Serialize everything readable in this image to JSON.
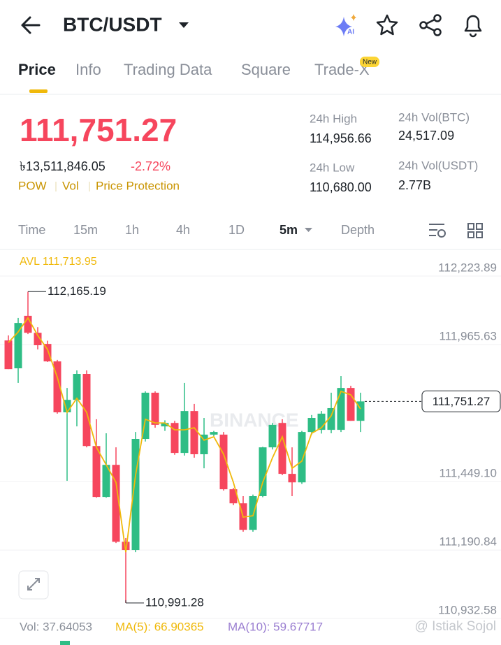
{
  "header": {
    "pair": "BTC/USDT",
    "ai": "AI"
  },
  "tabs": [
    "Price",
    "Info",
    "Trading Data",
    "Square",
    "Trade-X"
  ],
  "tab_badge": "New",
  "price": {
    "last": "111,751.27",
    "fiat": "৳13,511,846.05",
    "change": "-2.72%",
    "tags": [
      "POW",
      "Vol",
      "Price Protection"
    ]
  },
  "stats": [
    {
      "label": "24h High",
      "value": "114,956.66"
    },
    {
      "label": "24h Low",
      "value": "110,680.00"
    },
    {
      "label": "24h Vol(BTC)",
      "value": "24,517.09"
    },
    {
      "label": "24h Vol(USDT)",
      "value": "2.77B"
    }
  ],
  "intervals": [
    "Time",
    "15m",
    "1h",
    "4h",
    "1D",
    "5m",
    "Depth"
  ],
  "chart_watermark": "BINANCE",
  "chart_data": {
    "type": "candlestick",
    "avl": "AVL 111,713.95",
    "ylim": [
      110925,
      112324
    ],
    "yticks": [
      {
        "value": 112223.89,
        "label": "112,223.89"
      },
      {
        "value": 111965.63,
        "label": "111,965.63"
      },
      {
        "value": 111449.1,
        "label": "111,449.10"
      },
      {
        "value": 111190.84,
        "label": "111,190.84"
      },
      {
        "value": 110932.58,
        "label": "110,932.58"
      }
    ],
    "grid": true,
    "up_color": "#2ebd85",
    "down_color": "#f6465d",
    "ma_color": "#f0b90b",
    "open": [
      111981,
      111876,
      112074,
      112010,
      111968,
      111902,
      111710,
      111757,
      111855,
      111583,
      111391,
      111512,
      111222,
      111191,
      111610,
      111784,
      111657,
      111670,
      111557,
      111715,
      111552,
      111626,
      111626,
      111420,
      111367,
      111267,
      111394,
      111578,
      111670,
      111478,
      111446,
      111636,
      111644,
      111644,
      111644,
      111802,
      111678
    ],
    "high": [
      112000,
      112066,
      112165.19,
      112031,
      111980,
      111908,
      111802,
      111868,
      111868,
      111684,
      111631,
      111578,
      111236,
      111636,
      111789,
      111789,
      111680,
      111678,
      111821,
      111742,
      111689,
      111640,
      111636,
      111425,
      111394,
      111400,
      111580,
      111670,
      111684,
      111578,
      111640,
      111700,
      111715,
      111784,
      111847,
      111810,
      111784
    ],
    "low": [
      111873,
      111821,
      112005,
      111947,
      111900,
      111705,
      111452,
      111657,
      111578,
      111388,
      111388,
      111217,
      110991.28,
      111183,
      111600,
      111652,
      111640,
      111550,
      111547,
      111539,
      111499,
      111620,
      111415,
      111360,
      111260,
      111260,
      111390,
      111570,
      111473,
      111394,
      111440,
      111626,
      111630,
      111631,
      111636,
      111678,
      111636
    ],
    "close": [
      111873,
      112047,
      112010,
      111963,
      111902,
      111710,
      111757,
      111855,
      111583,
      111391,
      111512,
      111222,
      111191,
      111610,
      111784,
      111663,
      111670,
      111557,
      111715,
      111552,
      111626,
      111636,
      111420,
      111367,
      111267,
      111394,
      111578,
      111663,
      111478,
      111446,
      111636,
      111689,
      111705,
      111726,
      111802,
      111678,
      111751.27
    ],
    "ma": [
      111973,
      112013,
      112066,
      112000,
      111947,
      111842,
      111710,
      111763,
      111710,
      111578,
      111512,
      111446,
      111183,
      111473,
      111684,
      111670,
      111670,
      111644,
      111644,
      111652,
      111605,
      111618,
      111552,
      111446,
      111315,
      111320,
      111446,
      111539,
      111618,
      111499,
      111526,
      111631,
      111652,
      111697,
      111789,
      111776,
      111723
    ],
    "annotations": [
      {
        "value": 112165.19,
        "label": "112,165.19"
      },
      {
        "value": 110991.28,
        "label": "110,991.28"
      }
    ],
    "current": {
      "value": 111751.27,
      "label": "111,751.27"
    }
  },
  "volume": {
    "vol": "Vol: 37.64053",
    "ma5": "MA(5): 66.90365",
    "ma10": "MA(10): 59.67717"
  },
  "watermark": "@ Istiak Sojol"
}
